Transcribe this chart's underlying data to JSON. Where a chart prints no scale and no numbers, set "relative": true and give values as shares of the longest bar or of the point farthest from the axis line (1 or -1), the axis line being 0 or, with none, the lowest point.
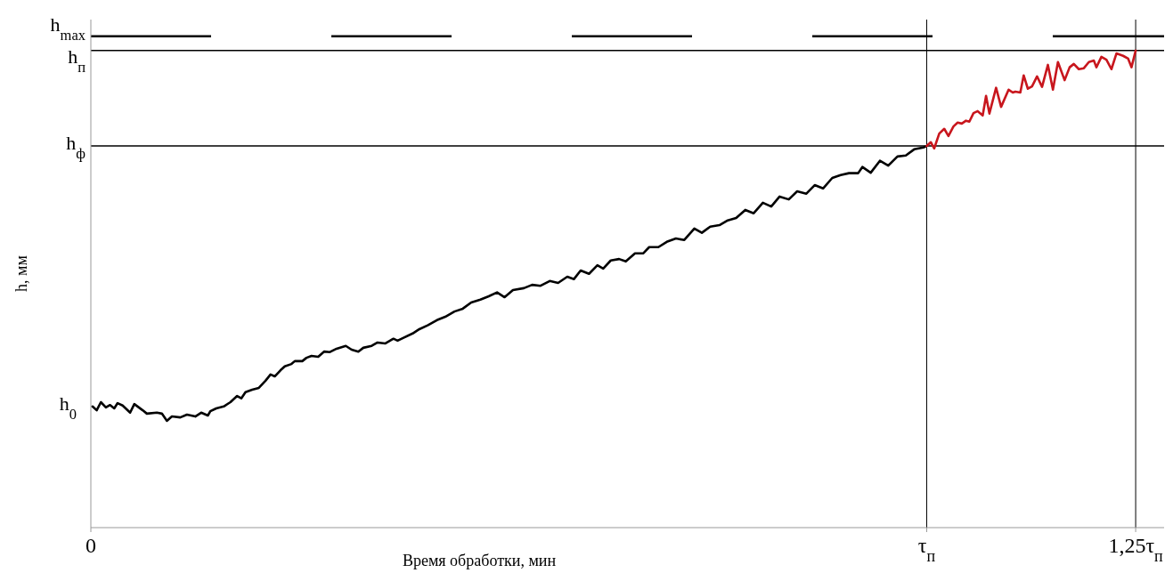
{
  "chart_data": {
    "type": "line",
    "relative": true,
    "xlabel": "Время обработки, мин",
    "ylabel": "h, мм",
    "xlim": [
      0,
      1.284
    ],
    "xticks": [
      0,
      {
        "value": 1,
        "label": "τ$_{п}$"
      },
      {
        "value": 1.25,
        "label": "1,25τ$_{п}$"
      }
    ],
    "marker": "none",
    "line_style": "solid",
    "series": [
      {
        "color": "#000000",
        "x": [
          0.002,
          0.007,
          0.012,
          0.018,
          0.023,
          0.028,
          0.032,
          0.038,
          0.047,
          0.052,
          0.062,
          0.067,
          0.079,
          0.085,
          0.091,
          0.097,
          0.107,
          0.115,
          0.125,
          0.132,
          0.14,
          0.143,
          0.15,
          0.159,
          0.167,
          0.175,
          0.18,
          0.185,
          0.193,
          0.201,
          0.209,
          0.215,
          0.22,
          0.227,
          0.232,
          0.24,
          0.244,
          0.253,
          0.258,
          0.264,
          0.272,
          0.279,
          0.286,
          0.294,
          0.305,
          0.312,
          0.32,
          0.326,
          0.336,
          0.343,
          0.352,
          0.362,
          0.367,
          0.373,
          0.385,
          0.393,
          0.403,
          0.414,
          0.424,
          0.435,
          0.445,
          0.455,
          0.466,
          0.476,
          0.486,
          0.495,
          0.505,
          0.518,
          0.528,
          0.538,
          0.549,
          0.559,
          0.57,
          0.578,
          0.586,
          0.596,
          0.606,
          0.613,
          0.622,
          0.632,
          0.64,
          0.651,
          0.661,
          0.668,
          0.679,
          0.689,
          0.7,
          0.71,
          0.722,
          0.731,
          0.741,
          0.752,
          0.762,
          0.772,
          0.783,
          0.793,
          0.804,
          0.814,
          0.824,
          0.835,
          0.845,
          0.856,
          0.866,
          0.876,
          0.887,
          0.897,
          0.907,
          0.918,
          0.923,
          0.933,
          0.944,
          0.954,
          0.965,
          0.975,
          0.985,
          0.996,
          1.0
        ],
        "values": [
          0.254,
          0.246,
          0.263,
          0.252,
          0.257,
          0.25,
          0.261,
          0.256,
          0.241,
          0.259,
          0.246,
          0.239,
          0.241,
          0.239,
          0.224,
          0.233,
          0.231,
          0.237,
          0.233,
          0.241,
          0.235,
          0.244,
          0.25,
          0.254,
          0.263,
          0.276,
          0.271,
          0.284,
          0.289,
          0.293,
          0.308,
          0.321,
          0.317,
          0.33,
          0.338,
          0.343,
          0.349,
          0.349,
          0.356,
          0.36,
          0.358,
          0.369,
          0.368,
          0.375,
          0.381,
          0.373,
          0.369,
          0.377,
          0.381,
          0.388,
          0.386,
          0.396,
          0.392,
          0.397,
          0.407,
          0.416,
          0.424,
          0.435,
          0.442,
          0.453,
          0.459,
          0.472,
          0.478,
          0.485,
          0.493,
          0.483,
          0.498,
          0.502,
          0.509,
          0.507,
          0.517,
          0.513,
          0.526,
          0.521,
          0.539,
          0.532,
          0.55,
          0.543,
          0.56,
          0.563,
          0.558,
          0.575,
          0.575,
          0.588,
          0.588,
          0.599,
          0.606,
          0.603,
          0.627,
          0.618,
          0.631,
          0.634,
          0.644,
          0.649,
          0.666,
          0.659,
          0.681,
          0.673,
          0.694,
          0.688,
          0.705,
          0.7,
          0.718,
          0.711,
          0.733,
          0.739,
          0.743,
          0.743,
          0.756,
          0.744,
          0.769,
          0.759,
          0.778,
          0.78,
          0.793,
          0.797,
          0.8
        ]
      },
      {
        "color": "#c8161d",
        "x": [
          1.0,
          1.005,
          1.009,
          1.015,
          1.021,
          1.026,
          1.032,
          1.037,
          1.042,
          1.047,
          1.051,
          1.056,
          1.061,
          1.067,
          1.071,
          1.075,
          1.083,
          1.089,
          1.098,
          1.103,
          1.106,
          1.112,
          1.116,
          1.121,
          1.126,
          1.132,
          1.138,
          1.145,
          1.151,
          1.157,
          1.165,
          1.171,
          1.176,
          1.182,
          1.188,
          1.194,
          1.2,
          1.203,
          1.209,
          1.215,
          1.221,
          1.227,
          1.235,
          1.241,
          1.245,
          1.25
        ],
        "values": [
          0.8,
          0.808,
          0.795,
          0.826,
          0.836,
          0.821,
          0.841,
          0.849,
          0.847,
          0.853,
          0.851,
          0.869,
          0.873,
          0.864,
          0.905,
          0.868,
          0.922,
          0.882,
          0.918,
          0.912,
          0.914,
          0.912,
          0.948,
          0.92,
          0.925,
          0.946,
          0.924,
          0.97,
          0.918,
          0.976,
          0.938,
          0.965,
          0.972,
          0.961,
          0.963,
          0.976,
          0.979,
          0.965,
          0.987,
          0.981,
          0.961,
          0.994,
          0.989,
          0.983,
          0.965,
          1.0
        ]
      }
    ],
    "ref_lines": [
      {
        "axis": "y",
        "value": 1.03,
        "label": "h$_{max}$",
        "color": "#000000",
        "line_style": "dashed"
      },
      {
        "axis": "y",
        "value": 1.0,
        "label": "h$_{п}$",
        "color": "#000000",
        "line_style": "solid"
      },
      {
        "axis": "y",
        "value": 0.8,
        "label": "h$_{ф}$",
        "color": "#000000",
        "line_style": "solid"
      },
      {
        "axis": "x",
        "value": 1,
        "color": "#000000",
        "line_style": "solid"
      },
      {
        "axis": "x",
        "value": 1.25,
        "color": "#000000",
        "line_style": "solid"
      }
    ],
    "annotations": [
      {
        "text": "h$_{0}$",
        "x": 0,
        "y": 0.254
      }
    ]
  }
}
